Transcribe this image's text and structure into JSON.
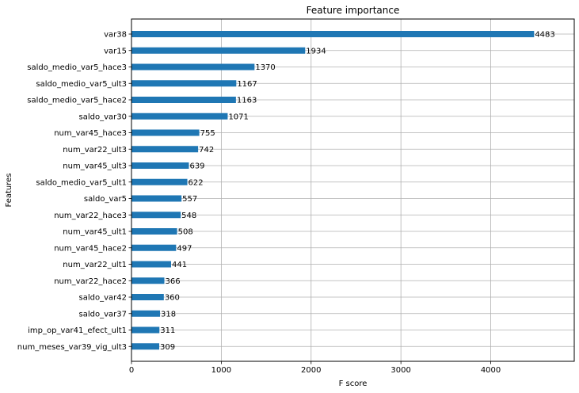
{
  "chart_data": {
    "type": "bar",
    "orientation": "horizontal",
    "title": "Feature importance",
    "xlabel": "F score",
    "ylabel": "Features",
    "xlim": [
      0,
      4930
    ],
    "xticks": [
      0,
      1000,
      2000,
      3000,
      4000
    ],
    "grid": true,
    "bar_color": "#1f77b4",
    "categories": [
      "var38",
      "var15",
      "saldo_medio_var5_hace3",
      "saldo_medio_var5_ult3",
      "saldo_medio_var5_hace2",
      "saldo_var30",
      "num_var45_hace3",
      "num_var22_ult3",
      "num_var45_ult3",
      "saldo_medio_var5_ult1",
      "saldo_var5",
      "num_var22_hace3",
      "num_var45_ult1",
      "num_var45_hace2",
      "num_var22_ult1",
      "num_var22_hace2",
      "saldo_var42",
      "saldo_var37",
      "imp_op_var41_efect_ult1",
      "num_meses_var39_vig_ult3"
    ],
    "values": [
      4483,
      1934,
      1370,
      1167,
      1163,
      1071,
      755,
      742,
      639,
      622,
      557,
      548,
      508,
      497,
      441,
      366,
      360,
      318,
      311,
      309
    ]
  }
}
